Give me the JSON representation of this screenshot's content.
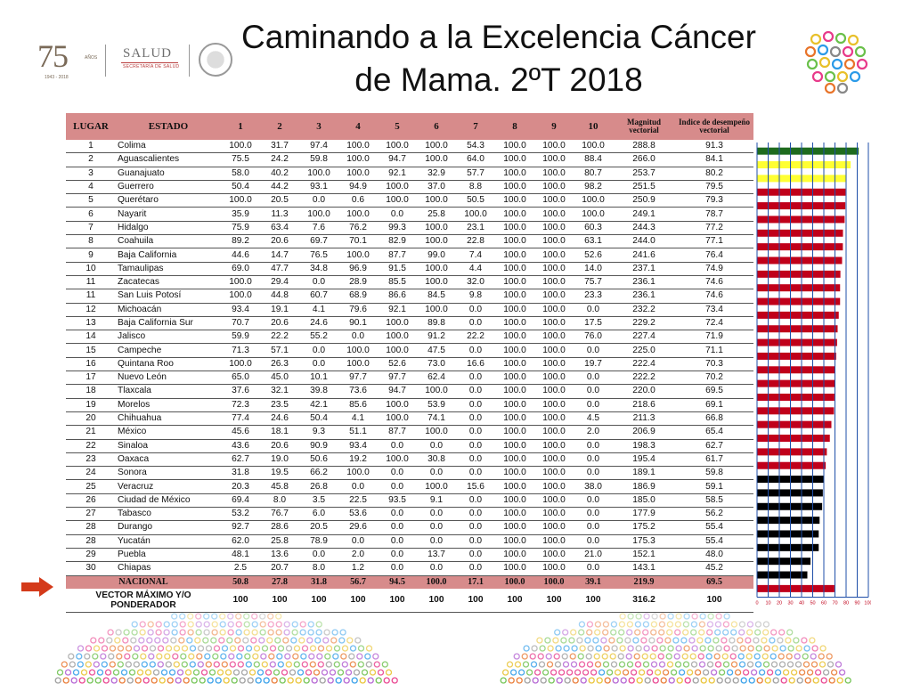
{
  "title": {
    "line1": "Caminando a la Excelencia Cáncer",
    "line2": "de Mama. 2ºT 2018"
  },
  "logo": {
    "number": "75",
    "anos": "AÑOS",
    "years": "1943 - 2018",
    "salud": "SALUD",
    "secretaria": "SECRETARÍA DE SALUD"
  },
  "table": {
    "headers": [
      "LUGAR",
      "ESTADO",
      "1",
      "2",
      "3",
      "4",
      "5",
      "6",
      "7",
      "8",
      "9",
      "10",
      "Magnitud vectorial",
      "Indice de desempeño vectorial"
    ],
    "rows": [
      {
        "lugar": "1",
        "estado": "Colima",
        "v": [
          "100.0",
          "31.7",
          "97.4",
          "100.0",
          "100.0",
          "100.0",
          "54.3",
          "100.0",
          "100.0",
          "100.0"
        ],
        "mag": "288.8",
        "ind": "91.3",
        "color": "#1e6b1e"
      },
      {
        "lugar": "2",
        "estado": "Aguascalientes",
        "v": [
          "75.5",
          "24.2",
          "59.8",
          "100.0",
          "94.7",
          "100.0",
          "64.0",
          "100.0",
          "100.0",
          "88.4"
        ],
        "mag": "266.0",
        "ind": "84.1",
        "color": "#ffff33"
      },
      {
        "lugar": "3",
        "estado": "Guanajuato",
        "v": [
          "58.0",
          "40.2",
          "100.0",
          "100.0",
          "92.1",
          "32.9",
          "57.7",
          "100.0",
          "100.0",
          "80.7"
        ],
        "mag": "253.7",
        "ind": "80.2",
        "color": "#ffff33"
      },
      {
        "lugar": "4",
        "estado": "Guerrero",
        "v": [
          "50.4",
          "44.2",
          "93.1",
          "94.9",
          "100.0",
          "37.0",
          "8.8",
          "100.0",
          "100.0",
          "98.2"
        ],
        "mag": "251.5",
        "ind": "79.5",
        "color": "#c0001a"
      },
      {
        "lugar": "5",
        "estado": "Querétaro",
        "v": [
          "100.0",
          "20.5",
          "0.0",
          "0.6",
          "100.0",
          "100.0",
          "50.5",
          "100.0",
          "100.0",
          "100.0"
        ],
        "mag": "250.9",
        "ind": "79.3",
        "color": "#c0001a"
      },
      {
        "lugar": "6",
        "estado": "Nayarit",
        "v": [
          "35.9",
          "11.3",
          "100.0",
          "100.0",
          "0.0",
          "25.8",
          "100.0",
          "100.0",
          "100.0",
          "100.0"
        ],
        "mag": "249.1",
        "ind": "78.7",
        "color": "#c0001a"
      },
      {
        "lugar": "7",
        "estado": "Hidalgo",
        "v": [
          "75.9",
          "63.4",
          "7.6",
          "76.2",
          "99.3",
          "100.0",
          "23.1",
          "100.0",
          "100.0",
          "60.3"
        ],
        "mag": "244.3",
        "ind": "77.2",
        "color": "#c0001a"
      },
      {
        "lugar": "8",
        "estado": "Coahuila",
        "v": [
          "89.2",
          "20.6",
          "69.7",
          "70.1",
          "82.9",
          "100.0",
          "22.8",
          "100.0",
          "100.0",
          "63.1"
        ],
        "mag": "244.0",
        "ind": "77.1",
        "color": "#c0001a"
      },
      {
        "lugar": "9",
        "estado": "Baja California",
        "v": [
          "44.6",
          "14.7",
          "76.5",
          "100.0",
          "87.7",
          "99.0",
          "7.4",
          "100.0",
          "100.0",
          "52.6"
        ],
        "mag": "241.6",
        "ind": "76.4",
        "color": "#c0001a"
      },
      {
        "lugar": "10",
        "estado": "Tamaulipas",
        "v": [
          "69.0",
          "47.7",
          "34.8",
          "96.9",
          "91.5",
          "100.0",
          "4.4",
          "100.0",
          "100.0",
          "14.0"
        ],
        "mag": "237.1",
        "ind": "74.9",
        "color": "#c0001a"
      },
      {
        "lugar": "11",
        "estado": "Zacatecas",
        "v": [
          "100.0",
          "29.4",
          "0.0",
          "28.9",
          "85.5",
          "100.0",
          "32.0",
          "100.0",
          "100.0",
          "75.7"
        ],
        "mag": "236.1",
        "ind": "74.6",
        "color": "#c0001a"
      },
      {
        "lugar": "11",
        "estado": "San Luis Potosí",
        "v": [
          "100.0",
          "44.8",
          "60.7",
          "68.9",
          "86.6",
          "84.5",
          "9.8",
          "100.0",
          "100.0",
          "23.3"
        ],
        "mag": "236.1",
        "ind": "74.6",
        "color": "#c0001a"
      },
      {
        "lugar": "12",
        "estado": "Michoacán",
        "v": [
          "93.4",
          "19.1",
          "4.1",
          "79.6",
          "92.1",
          "100.0",
          "0.0",
          "100.0",
          "100.0",
          "0.0"
        ],
        "mag": "232.2",
        "ind": "73.4",
        "color": "#c0001a"
      },
      {
        "lugar": "13",
        "estado": "Baja California Sur",
        "v": [
          "70.7",
          "20.6",
          "24.6",
          "90.1",
          "100.0",
          "89.8",
          "0.0",
          "100.0",
          "100.0",
          "17.5"
        ],
        "mag": "229.2",
        "ind": "72.4",
        "color": "#c0001a"
      },
      {
        "lugar": "14",
        "estado": "Jalisco",
        "v": [
          "59.9",
          "22.2",
          "55.2",
          "0.0",
          "100.0",
          "91.2",
          "22.2",
          "100.0",
          "100.0",
          "76.0"
        ],
        "mag": "227.4",
        "ind": "71.9",
        "color": "#c0001a"
      },
      {
        "lugar": "15",
        "estado": "Campeche",
        "v": [
          "71.3",
          "57.1",
          "0.0",
          "100.0",
          "100.0",
          "47.5",
          "0.0",
          "100.0",
          "100.0",
          "0.0"
        ],
        "mag": "225.0",
        "ind": "71.1",
        "color": "#c0001a"
      },
      {
        "lugar": "16",
        "estado": "Quintana Roo",
        "v": [
          "100.0",
          "26.3",
          "0.0",
          "100.0",
          "52.6",
          "73.0",
          "16.6",
          "100.0",
          "100.0",
          "19.7"
        ],
        "mag": "222.4",
        "ind": "70.3",
        "color": "#c0001a"
      },
      {
        "lugar": "17",
        "estado": "Nuevo León",
        "v": [
          "65.0",
          "45.0",
          "10.1",
          "97.7",
          "97.7",
          "62.4",
          "0.0",
          "100.0",
          "100.0",
          "0.0"
        ],
        "mag": "222.2",
        "ind": "70.2",
        "color": "#c0001a"
      },
      {
        "lugar": "18",
        "estado": "Tlaxcala",
        "v": [
          "37.6",
          "32.1",
          "39.8",
          "73.6",
          "94.7",
          "100.0",
          "0.0",
          "100.0",
          "100.0",
          "0.0"
        ],
        "mag": "220.0",
        "ind": "69.5",
        "color": "#c0001a"
      },
      {
        "lugar": "19",
        "estado": "Morelos",
        "v": [
          "72.3",
          "23.5",
          "42.1",
          "85.6",
          "100.0",
          "53.9",
          "0.0",
          "100.0",
          "100.0",
          "0.0"
        ],
        "mag": "218.6",
        "ind": "69.1",
        "color": "#c0001a"
      },
      {
        "lugar": "20",
        "estado": "Chihuahua",
        "v": [
          "77.4",
          "24.6",
          "50.4",
          "4.1",
          "100.0",
          "74.1",
          "0.0",
          "100.0",
          "100.0",
          "4.5"
        ],
        "mag": "211.3",
        "ind": "66.8",
        "color": "#c0001a"
      },
      {
        "lugar": "21",
        "estado": "México",
        "v": [
          "45.6",
          "18.1",
          "9.3",
          "51.1",
          "87.7",
          "100.0",
          "0.0",
          "100.0",
          "100.0",
          "2.0"
        ],
        "mag": "206.9",
        "ind": "65.4",
        "color": "#c0001a"
      },
      {
        "lugar": "22",
        "estado": "Sinaloa",
        "v": [
          "43.6",
          "20.6",
          "90.9",
          "93.4",
          "0.0",
          "0.0",
          "0.0",
          "100.0",
          "100.0",
          "0.0"
        ],
        "mag": "198.3",
        "ind": "62.7",
        "color": "#c0001a"
      },
      {
        "lugar": "23",
        "estado": "Oaxaca",
        "v": [
          "62.7",
          "19.0",
          "50.6",
          "19.2",
          "100.0",
          "30.8",
          "0.0",
          "100.0",
          "100.0",
          "0.0"
        ],
        "mag": "195.4",
        "ind": "61.7",
        "color": "#c0001a"
      },
      {
        "lugar": "24",
        "estado": "Sonora",
        "v": [
          "31.8",
          "19.5",
          "66.2",
          "100.0",
          "0.0",
          "0.0",
          "0.0",
          "100.0",
          "100.0",
          "0.0"
        ],
        "mag": "189.1",
        "ind": "59.8",
        "color": "#000000"
      },
      {
        "lugar": "25",
        "estado": "Veracruz",
        "v": [
          "20.3",
          "45.8",
          "26.8",
          "0.0",
          "0.0",
          "100.0",
          "15.6",
          "100.0",
          "100.0",
          "38.0"
        ],
        "mag": "186.9",
        "ind": "59.1",
        "color": "#000000"
      },
      {
        "lugar": "26",
        "estado": "Ciudad de México",
        "v": [
          "69.4",
          "8.0",
          "3.5",
          "22.5",
          "93.5",
          "9.1",
          "0.0",
          "100.0",
          "100.0",
          "0.0"
        ],
        "mag": "185.0",
        "ind": "58.5",
        "color": "#000000"
      },
      {
        "lugar": "27",
        "estado": "Tabasco",
        "v": [
          "53.2",
          "76.7",
          "6.0",
          "53.6",
          "0.0",
          "0.0",
          "0.0",
          "100.0",
          "100.0",
          "0.0"
        ],
        "mag": "177.9",
        "ind": "56.2",
        "color": "#000000"
      },
      {
        "lugar": "28",
        "estado": "Durango",
        "v": [
          "92.7",
          "28.6",
          "20.5",
          "29.6",
          "0.0",
          "0.0",
          "0.0",
          "100.0",
          "100.0",
          "0.0"
        ],
        "mag": "175.2",
        "ind": "55.4",
        "color": "#000000"
      },
      {
        "lugar": "28",
        "estado": "Yucatán",
        "v": [
          "62.0",
          "25.8",
          "78.9",
          "0.0",
          "0.0",
          "0.0",
          "0.0",
          "100.0",
          "100.0",
          "0.0"
        ],
        "mag": "175.3",
        "ind": "55.4",
        "color": "#000000"
      },
      {
        "lugar": "29",
        "estado": "Puebla",
        "v": [
          "48.1",
          "13.6",
          "0.0",
          "2.0",
          "0.0",
          "13.7",
          "0.0",
          "100.0",
          "100.0",
          "21.0"
        ],
        "mag": "152.1",
        "ind": "48.0",
        "color": "#000000"
      },
      {
        "lugar": "30",
        "estado": "Chiapas",
        "v": [
          "2.5",
          "20.7",
          "8.0",
          "1.2",
          "0.0",
          "0.0",
          "0.0",
          "100.0",
          "100.0",
          "0.0"
        ],
        "mag": "143.1",
        "ind": "45.2",
        "color": "#000000"
      }
    ],
    "nacional": {
      "label": "NACIONAL",
      "v": [
        "50.8",
        "27.8",
        "31.8",
        "56.7",
        "94.5",
        "100.0",
        "17.1",
        "100.0",
        "100.0",
        "39.1"
      ],
      "mag": "219.9",
      "ind": "69.5",
      "color": "#c0001a"
    },
    "vector": {
      "label": "VECTOR MÁXIMO Y/O PONDERADOR",
      "v": [
        "100",
        "100",
        "100",
        "100",
        "100",
        "100",
        "100",
        "100",
        "100",
        "100"
      ],
      "mag": "316.2",
      "ind": "100"
    }
  },
  "chart_data": {
    "type": "bar",
    "orientation": "horizontal",
    "xlim": [
      0,
      100
    ],
    "ticks": [
      "0",
      "10",
      "20",
      "30",
      "40",
      "50",
      "60",
      "70",
      "80",
      "90",
      "100"
    ],
    "grid": true,
    "values_source": "table.rows[].ind + table.nacional.ind"
  },
  "colors": {
    "header_bg": "#d78b8b",
    "green": "#1e6b1e",
    "yellow": "#ffff33",
    "red": "#c0001a",
    "black": "#000000",
    "grid": "#1f4fa8",
    "arrow": "#d43a1a"
  },
  "icons": {
    "arrow": "right-arrow-icon",
    "circles": "colorful-circles-icon",
    "seal": "national-seal-icon"
  }
}
